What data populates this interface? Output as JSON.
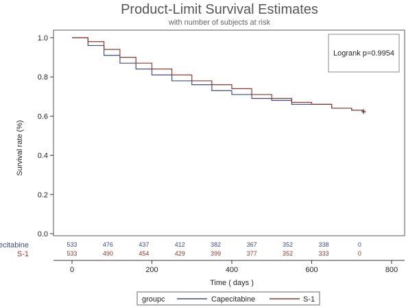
{
  "title": "Product-Limit Survival Estimates",
  "subtitle": "with number of subjects at  risk",
  "annotation": "Logrank p=0.9954",
  "colors": {
    "capecitabine": "#3f4b86",
    "s1": "#8b3a2e"
  },
  "chart_data": {
    "type": "line",
    "xlabel": "Time ( days )",
    "ylabel": "Survival rate  (%)",
    "xlim": [
      0,
      800
    ],
    "ylim": [
      0.0,
      1.0
    ],
    "xticks": [
      "0",
      "200",
      "400",
      "600",
      "800"
    ],
    "yticks": [
      "0.0",
      "0.2",
      "0.4",
      "0.6",
      "0.8",
      "1.0"
    ],
    "legend_placement": "bottom",
    "legend_title": "groupc",
    "grid": false,
    "series": [
      {
        "name": "Capecitabine",
        "x": [
          0,
          40,
          80,
          120,
          160,
          200,
          250,
          300,
          350,
          400,
          450,
          500,
          550,
          600,
          650,
          700,
          730
        ],
        "y": [
          1.0,
          0.96,
          0.91,
          0.87,
          0.84,
          0.81,
          0.78,
          0.76,
          0.73,
          0.71,
          0.69,
          0.68,
          0.66,
          0.66,
          0.64,
          0.63,
          0.62
        ]
      },
      {
        "name": "S-1",
        "x": [
          0,
          40,
          80,
          120,
          160,
          200,
          250,
          300,
          350,
          400,
          450,
          500,
          550,
          600,
          650,
          700,
          730
        ],
        "y": [
          1.0,
          0.98,
          0.94,
          0.9,
          0.87,
          0.84,
          0.81,
          0.78,
          0.76,
          0.74,
          0.71,
          0.69,
          0.67,
          0.66,
          0.64,
          0.63,
          0.625
        ]
      }
    ],
    "risk_table": {
      "times": [
        0,
        90,
        180,
        270,
        360,
        450,
        540,
        630,
        720
      ],
      "rows": [
        {
          "group": "Capecitabine",
          "counts": [
            "533",
            "476",
            "437",
            "412",
            "382",
            "367",
            "352",
            "338",
            "0"
          ]
        },
        {
          "group": "S-1",
          "counts": [
            "533",
            "490",
            "454",
            "429",
            "399",
            "377",
            "352",
            "333",
            "0"
          ]
        }
      ]
    }
  }
}
